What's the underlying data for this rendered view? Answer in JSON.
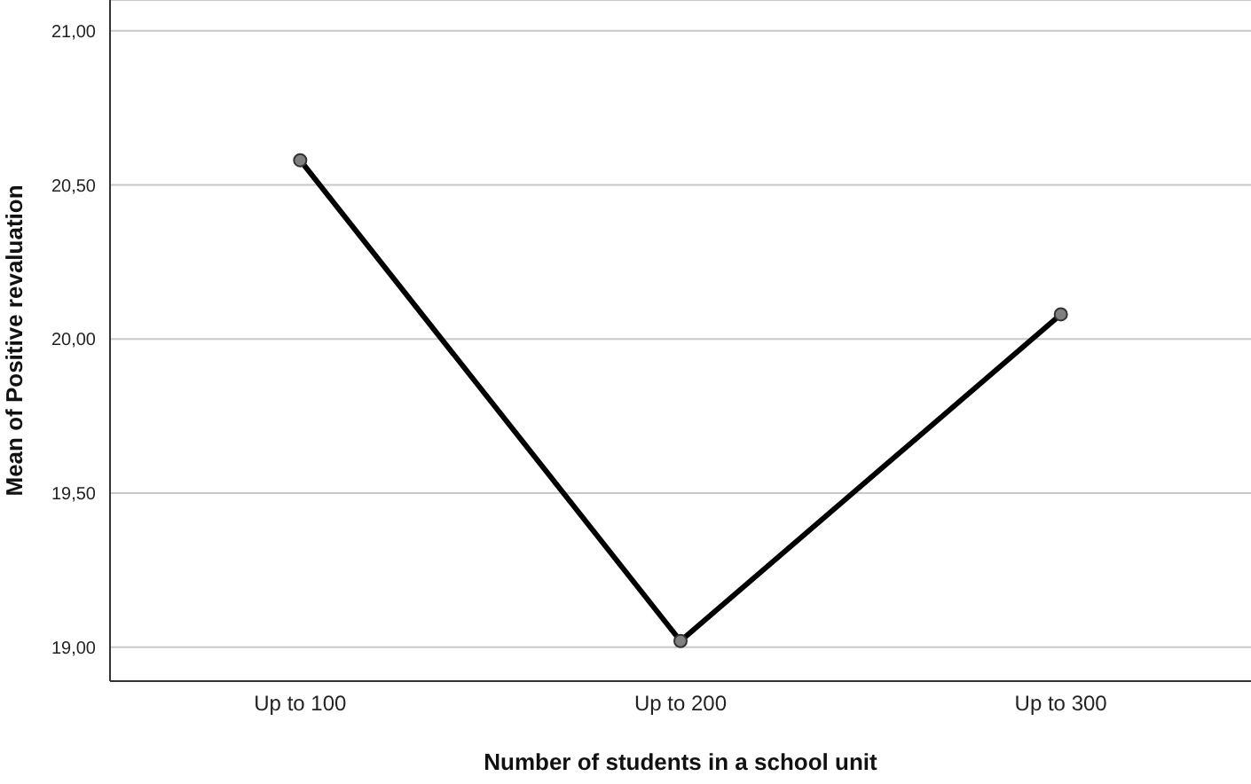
{
  "chart_data": {
    "type": "line",
    "xlabel": "Number of students in a school unit",
    "ylabel": "Mean of Positive revaluation",
    "categories": [
      "Up to 100",
      "Up to 200",
      "Up to 300"
    ],
    "series": [
      {
        "color": "#000000",
        "values": [
          20.58,
          19.02,
          20.08
        ]
      }
    ],
    "ylim": [
      18.89,
      21.1
    ],
    "yticks": [
      {
        "value": 19,
        "label": "19,00"
      },
      {
        "value": 19.5,
        "label": "19,50"
      },
      {
        "value": 20,
        "label": "20,00"
      },
      {
        "value": 20.5,
        "label": "20,50"
      },
      {
        "value": 21,
        "label": "21,00"
      }
    ],
    "grid": "y",
    "marker": "circle",
    "line_style": "solid"
  }
}
